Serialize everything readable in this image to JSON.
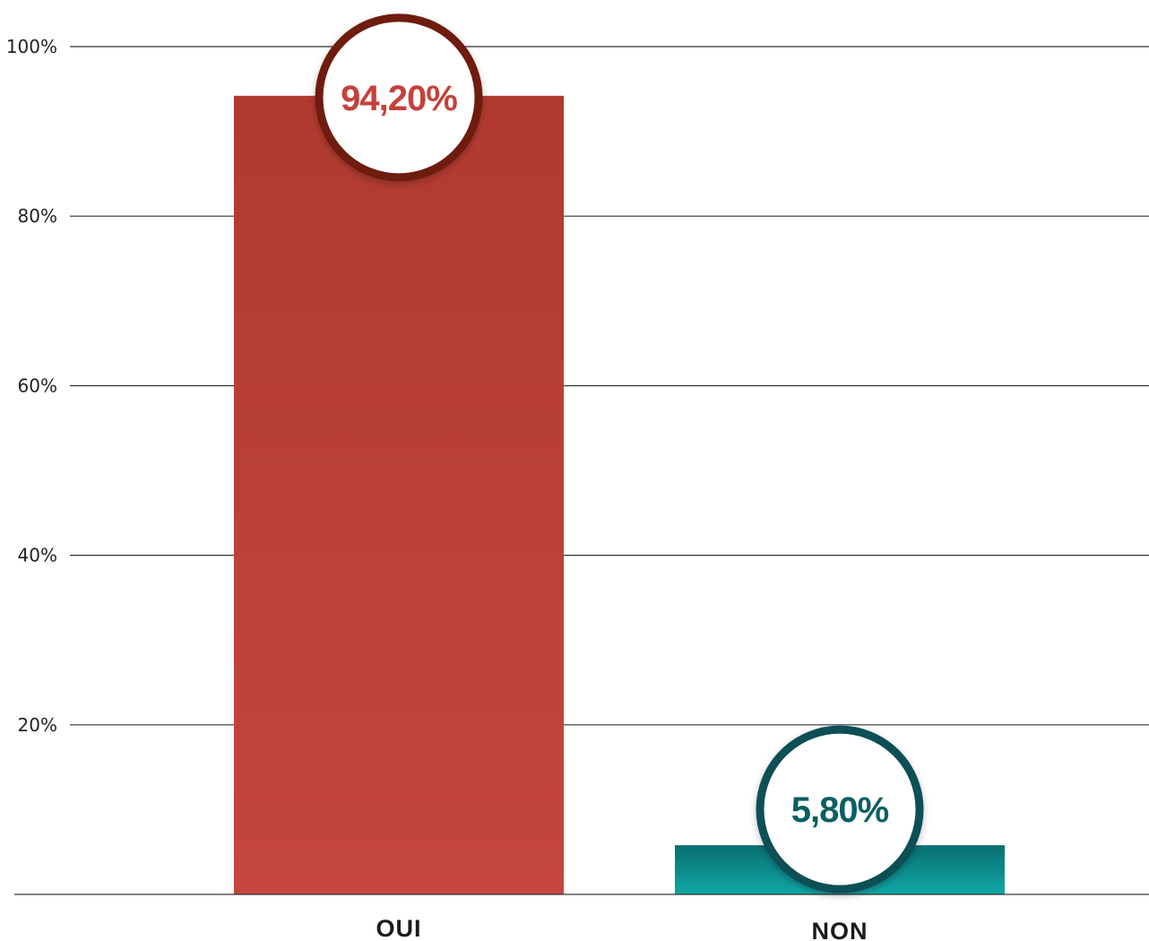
{
  "chart_data": {
    "type": "bar",
    "categories": [
      "OUI",
      "NON"
    ],
    "values": [
      94.2,
      5.8
    ],
    "data_labels": [
      "94,20%",
      "5,80%"
    ],
    "ylim": [
      0,
      100
    ],
    "yticks": [
      20,
      40,
      60,
      80,
      100
    ],
    "ytick_labels": [
      "20%",
      "40%",
      "60%",
      "80%",
      "100%"
    ],
    "grid": true,
    "legend": "none",
    "colors": {
      "bars": [
        {
          "top": "#b03a30",
          "bottom": "#c4463e",
          "ring": "#6e1a10"
        },
        {
          "top": "#0a6e70",
          "bottom": "#0fa8a6",
          "ring": "#0e4f57"
        }
      ],
      "data_label_text": [
        "#c5413c",
        "#0b5f63"
      ]
    }
  }
}
